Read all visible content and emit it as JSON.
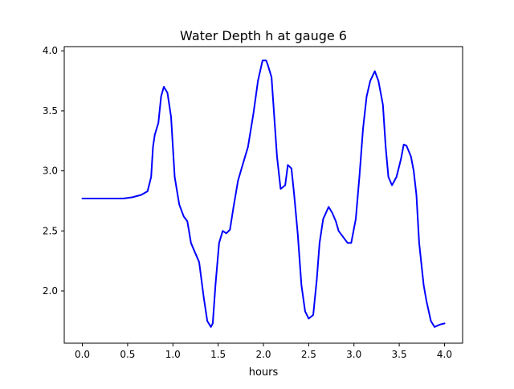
{
  "chart_data": {
    "type": "line",
    "title": "Water Depth h at gauge 6",
    "xlabel": "hours",
    "ylabel": "",
    "xlim": [
      -0.2,
      4.2
    ],
    "ylim": [
      1.565,
      4.035
    ],
    "grid": false,
    "x_ticks": [
      0.0,
      0.5,
      1.0,
      1.5,
      2.0,
      2.5,
      3.0,
      3.5,
      4.0
    ],
    "x_tick_labels": [
      "0.0",
      "0.5",
      "1.0",
      "1.5",
      "2.0",
      "2.5",
      "3.0",
      "3.5",
      "4.0"
    ],
    "y_ticks": [
      2.0,
      2.5,
      3.0,
      3.5,
      4.0
    ],
    "y_tick_labels": [
      "2.0",
      "2.5",
      "3.0",
      "3.5",
      "4.0"
    ],
    "series": [
      {
        "color": "#0000ff",
        "x": [
          0.0,
          0.25,
          0.45,
          0.55,
          0.65,
          0.72,
          0.76,
          0.78,
          0.8,
          0.84,
          0.87,
          0.9,
          0.94,
          0.98,
          1.02,
          1.07,
          1.12,
          1.16,
          1.2,
          1.25,
          1.29,
          1.34,
          1.38,
          1.42,
          1.44,
          1.47,
          1.51,
          1.55,
          1.59,
          1.63,
          1.67,
          1.72,
          1.77,
          1.83,
          1.89,
          1.94,
          1.99,
          2.03,
          2.05,
          2.09,
          2.12,
          2.15,
          2.19,
          2.24,
          2.27,
          2.31,
          2.34,
          2.38,
          2.42,
          2.46,
          2.5,
          2.55,
          2.59,
          2.62,
          2.66,
          2.72,
          2.76,
          2.8,
          2.83,
          2.88,
          2.93,
          2.97,
          3.02,
          3.06,
          3.1,
          3.14,
          3.18,
          3.23,
          3.27,
          3.32,
          3.35,
          3.38,
          3.42,
          3.47,
          3.52,
          3.55,
          3.58,
          3.63,
          3.66,
          3.69,
          3.72,
          3.77,
          3.8,
          3.85,
          3.89,
          3.95,
          4.0
        ],
        "y": [
          2.77,
          2.77,
          2.77,
          2.78,
          2.8,
          2.83,
          2.95,
          3.2,
          3.3,
          3.4,
          3.62,
          3.7,
          3.65,
          3.45,
          2.95,
          2.72,
          2.62,
          2.58,
          2.4,
          2.31,
          2.24,
          1.95,
          1.75,
          1.7,
          1.73,
          2.05,
          2.4,
          2.5,
          2.48,
          2.51,
          2.7,
          2.92,
          3.05,
          3.2,
          3.48,
          3.75,
          3.92,
          3.92,
          3.88,
          3.78,
          3.45,
          3.12,
          2.85,
          2.88,
          3.05,
          3.02,
          2.8,
          2.47,
          2.05,
          1.83,
          1.77,
          1.8,
          2.1,
          2.4,
          2.6,
          2.7,
          2.65,
          2.58,
          2.5,
          2.45,
          2.4,
          2.4,
          2.6,
          2.95,
          3.35,
          3.62,
          3.75,
          3.83,
          3.75,
          3.55,
          3.2,
          2.95,
          2.88,
          2.95,
          3.1,
          3.22,
          3.21,
          3.12,
          3.0,
          2.8,
          2.4,
          2.05,
          1.92,
          1.75,
          1.7,
          1.72,
          1.73
        ]
      }
    ]
  }
}
